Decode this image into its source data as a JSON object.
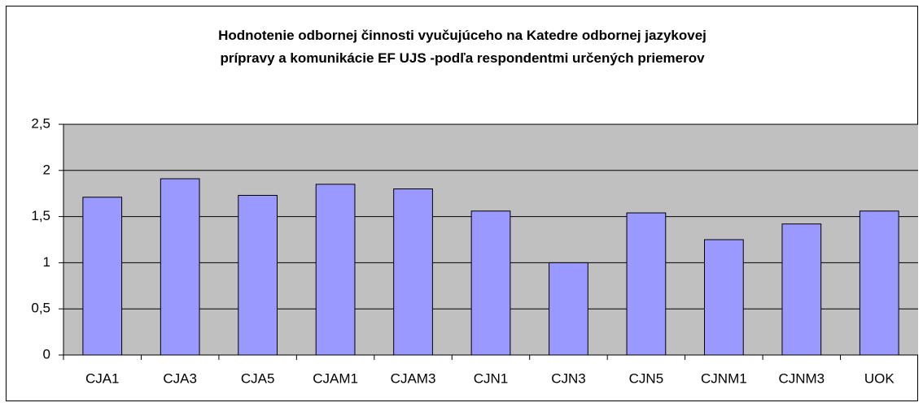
{
  "chart_data": {
    "type": "bar",
    "title": "Hodnotenie odbornej činnosti vyučujúceho na Katedre odbornej jazykovej\nprípravy a komunikácie EF UJS -podľa respondentmi určených priemerov",
    "categories": [
      "CJA1",
      "CJA3",
      "CJA5",
      "CJAM1",
      "CJAM3",
      "CJN1",
      "CJN3",
      "CJN5",
      "CJNM1",
      "CJNM3",
      "UOK"
    ],
    "values": [
      1.71,
      1.91,
      1.73,
      1.85,
      1.8,
      1.56,
      1.0,
      1.54,
      1.25,
      1.42,
      1.56
    ],
    "color": "#9999ff",
    "ylim": [
      0,
      2.5
    ],
    "yticks": [
      0,
      {
        "value": 0.5,
        "label": "0,5"
      },
      1,
      {
        "value": 1.5,
        "label": "1,5"
      },
      2,
      {
        "value": 2.5,
        "label": "2,5"
      }
    ],
    "grid": true
  }
}
